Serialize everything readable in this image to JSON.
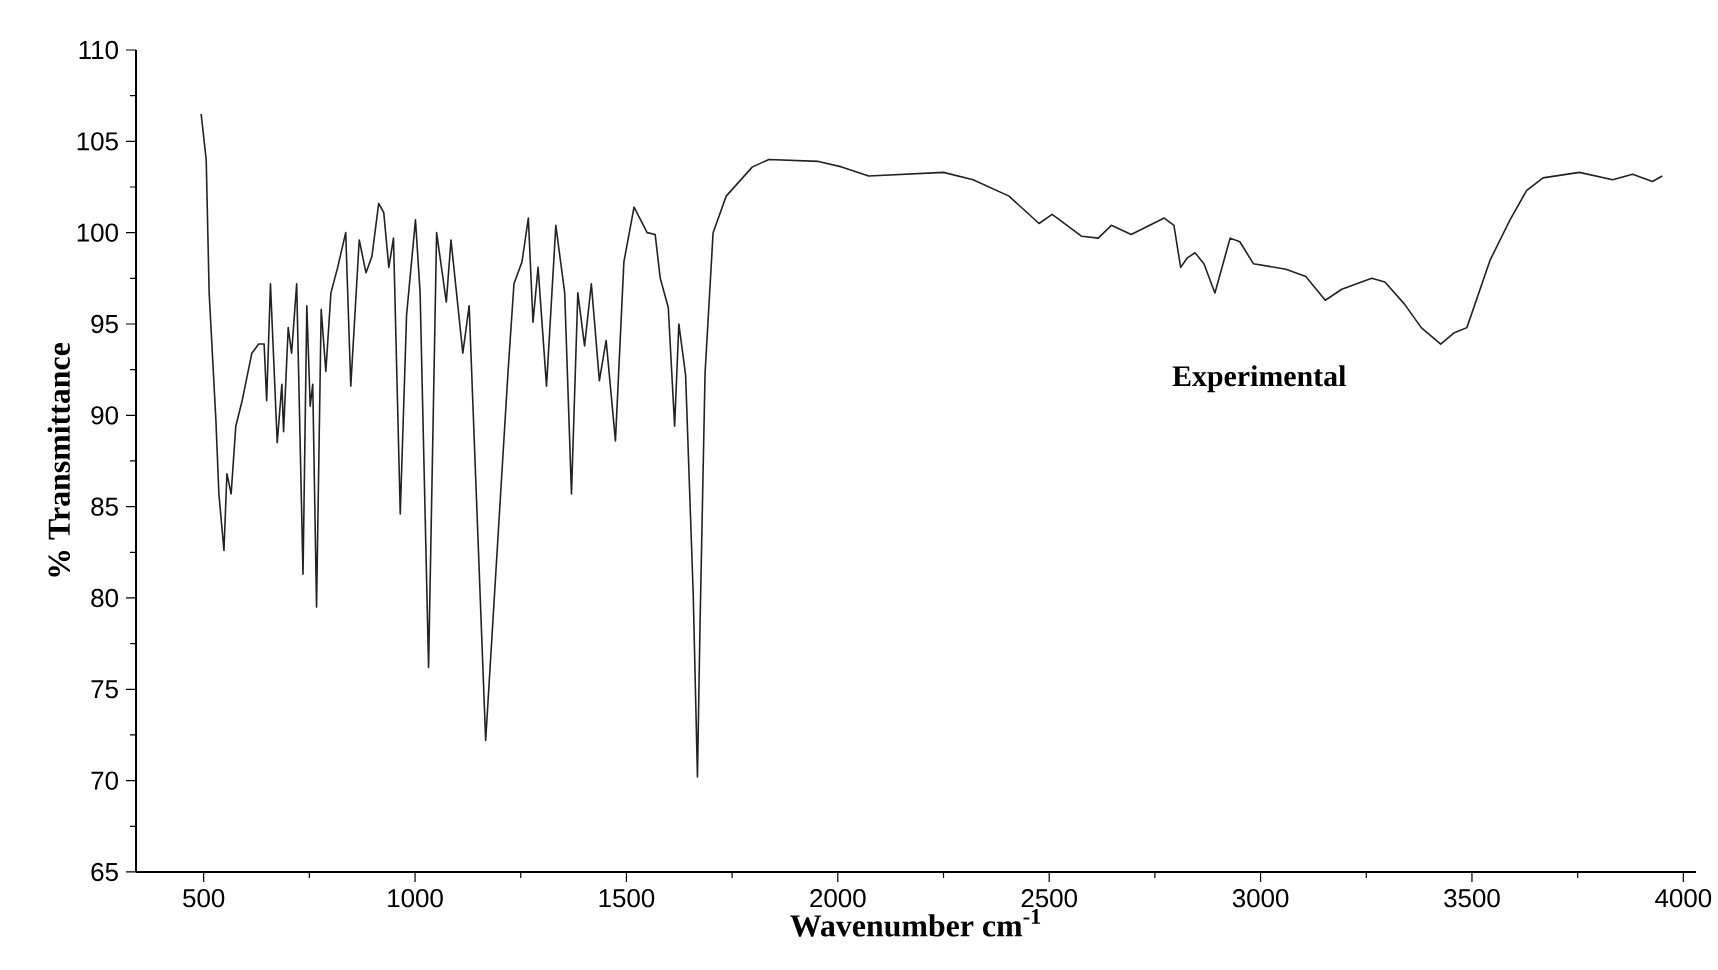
{
  "chart_data": {
    "type": "line",
    "xlabel": "Wavenumber cm$^{-1}$",
    "ylabel": "% Transmittance",
    "xlim": [
      340,
      4030
    ],
    "ylim": [
      65,
      110
    ],
    "xticks": [
      500,
      1000,
      1500,
      2000,
      2500,
      3000,
      3500,
      4000
    ],
    "yticks": [
      65,
      70,
      75,
      80,
      85,
      90,
      95,
      100,
      105,
      110
    ],
    "grid": false,
    "legend": false,
    "marker": "none",
    "line_style": "solid",
    "series": [
      {
        "name": "Experimental",
        "color": "#222222",
        "x": [
          494,
          506,
          513,
          529,
          536,
          548,
          555,
          565,
          576,
          591,
          614,
          630,
          643,
          649,
          658,
          674,
          685,
          689,
          700,
          708,
          720,
          735,
          744,
          752,
          758,
          767,
          778,
          789,
          801,
          817,
          836,
          848,
          868,
          884,
          898,
          914,
          926,
          938,
          949,
          965,
          980,
          1001,
          1012,
          1032,
          1051,
          1074,
          1085,
          1113,
          1128,
          1167,
          1188,
          1220,
          1234,
          1245,
          1253,
          1268,
          1279,
          1291,
          1311,
          1333,
          1354,
          1370,
          1385,
          1401,
          1417,
          1436,
          1452,
          1474,
          1494,
          1518,
          1549,
          1568,
          1580,
          1599,
          1614,
          1624,
          1640,
          1658,
          1668,
          1674,
          1686,
          1705,
          1736,
          1798,
          1837,
          1954,
          2009,
          2073,
          2250,
          2320,
          2405,
          2476,
          2507,
          2577,
          2616,
          2647,
          2694,
          2772,
          2795,
          2811,
          2826,
          2845,
          2866,
          2892,
          2928,
          2951,
          2983,
          3060,
          3107,
          3153,
          3192,
          3263,
          3294,
          3340,
          3380,
          3426,
          3457,
          3488,
          3543,
          3590,
          3629,
          3668,
          3754,
          3833,
          3880,
          3927,
          3950
        ],
        "values": [
          106.5,
          104.0,
          96.7,
          89.7,
          85.7,
          82.6,
          86.8,
          85.7,
          89.4,
          90.8,
          93.4,
          93.9,
          93.9,
          90.8,
          97.2,
          88.5,
          91.7,
          89.1,
          94.8,
          93.4,
          97.2,
          81.3,
          96.0,
          90.5,
          91.7,
          79.5,
          95.8,
          92.4,
          96.7,
          98.1,
          100.0,
          91.6,
          99.6,
          97.8,
          98.7,
          101.6,
          101.1,
          98.1,
          99.7,
          84.6,
          95.5,
          100.7,
          96.7,
          76.2,
          100.0,
          96.2,
          99.6,
          93.4,
          96.0,
          72.2,
          80.2,
          92.4,
          97.2,
          97.9,
          98.4,
          100.8,
          95.1,
          98.1,
          91.6,
          100.4,
          96.7,
          85.7,
          96.7,
          93.8,
          97.2,
          91.9,
          94.1,
          88.6,
          98.4,
          101.4,
          100.0,
          99.9,
          97.5,
          95.9,
          89.4,
          95.0,
          92.2,
          80.2,
          70.2,
          78.4,
          92.3,
          100.0,
          102.0,
          103.6,
          104.0,
          103.9,
          103.6,
          103.1,
          103.3,
          102.9,
          102.0,
          100.5,
          101.0,
          99.8,
          99.7,
          100.4,
          99.9,
          100.8,
          100.4,
          98.1,
          98.6,
          98.9,
          98.3,
          96.7,
          99.7,
          99.5,
          98.3,
          98.0,
          97.6,
          96.3,
          96.9,
          97.5,
          97.3,
          96.1,
          94.8,
          93.9,
          94.5,
          94.8,
          98.5,
          100.7,
          102.3,
          103.0,
          103.3,
          102.9,
          103.2,
          102.8,
          103.1
        ]
      }
    ]
  }
}
